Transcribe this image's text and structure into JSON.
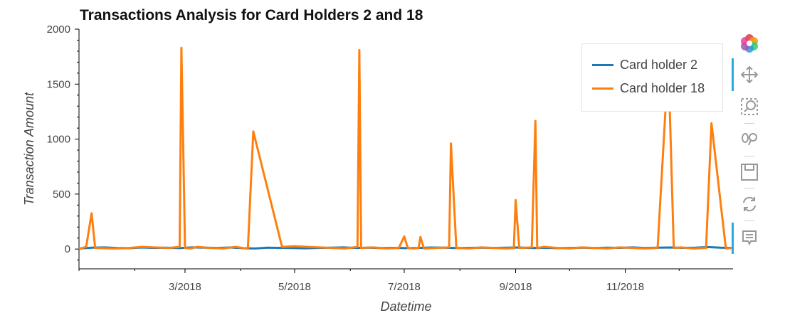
{
  "chart_data": {
    "type": "line",
    "title": "Transactions Analysis for Card Holders 2 and 18",
    "xlabel": "Datetime",
    "ylabel": "Transaction Amount",
    "x_tick_labels": [
      "3/2018",
      "5/2018",
      "7/2018",
      "9/2018",
      "11/2018"
    ],
    "y_tick_labels": [
      "0",
      "500",
      "1000",
      "1500",
      "2000"
    ],
    "xlim": [
      "2018-01-01",
      "2018-12-31"
    ],
    "ylim": [
      -180,
      2000
    ],
    "legend_position": "top-right",
    "grid": false,
    "series": [
      {
        "name": "Card holder 2",
        "color": "#1f77b4",
        "x": [
          "2018-01-01",
          "2018-01-08",
          "2018-01-15",
          "2018-01-22",
          "2018-01-29",
          "2018-02-05",
          "2018-02-12",
          "2018-02-19",
          "2018-02-26",
          "2018-03-05",
          "2018-03-12",
          "2018-03-19",
          "2018-03-26",
          "2018-04-02",
          "2018-04-09",
          "2018-04-16",
          "2018-04-23",
          "2018-04-30",
          "2018-05-07",
          "2018-05-14",
          "2018-05-21",
          "2018-05-28",
          "2018-06-04",
          "2018-06-11",
          "2018-06-18",
          "2018-06-25",
          "2018-07-02",
          "2018-07-09",
          "2018-07-16",
          "2018-07-23",
          "2018-07-30",
          "2018-08-06",
          "2018-08-13",
          "2018-08-20",
          "2018-08-27",
          "2018-09-03",
          "2018-09-10",
          "2018-09-17",
          "2018-09-24",
          "2018-10-01",
          "2018-10-08",
          "2018-10-15",
          "2018-10-22",
          "2018-10-29",
          "2018-11-05",
          "2018-11-12",
          "2018-11-19",
          "2018-11-26",
          "2018-12-03",
          "2018-12-10",
          "2018-12-17",
          "2018-12-24",
          "2018-12-31"
        ],
        "y": [
          5,
          12,
          15,
          10,
          8,
          14,
          10,
          12,
          8,
          15,
          12,
          10,
          14,
          8,
          5,
          12,
          11,
          9,
          7,
          10,
          13,
          15,
          10,
          12,
          9,
          11,
          8,
          10,
          14,
          12,
          9,
          11,
          13,
          10,
          12,
          14,
          9,
          11,
          8,
          10,
          12,
          9,
          13,
          11,
          15,
          10,
          12,
          14,
          11,
          13,
          18,
          12,
          10
        ]
      },
      {
        "name": "Card holder 18",
        "color": "#ff7f0e",
        "x": [
          "2018-01-01",
          "2018-01-05",
          "2018-01-08",
          "2018-01-10",
          "2018-01-20",
          "2018-01-28",
          "2018-02-05",
          "2018-02-12",
          "2018-02-20",
          "2018-02-26",
          "2018-02-27",
          "2018-03-01",
          "2018-03-04",
          "2018-03-08",
          "2018-03-15",
          "2018-03-22",
          "2018-03-29",
          "2018-04-05",
          "2018-04-08",
          "2018-04-24",
          "2018-05-01",
          "2018-05-08",
          "2018-05-15",
          "2018-05-22",
          "2018-05-29",
          "2018-06-05",
          "2018-06-06",
          "2018-06-07",
          "2018-06-14",
          "2018-06-21",
          "2018-06-28",
          "2018-07-01",
          "2018-07-03",
          "2018-07-06",
          "2018-07-09",
          "2018-07-10",
          "2018-07-12",
          "2018-07-19",
          "2018-07-26",
          "2018-07-27",
          "2018-07-30",
          "2018-08-06",
          "2018-08-13",
          "2018-08-20",
          "2018-08-27",
          "2018-08-31",
          "2018-09-01",
          "2018-09-03",
          "2018-09-10",
          "2018-09-12",
          "2018-09-13",
          "2018-09-17",
          "2018-09-24",
          "2018-10-01",
          "2018-10-08",
          "2018-10-15",
          "2018-10-22",
          "2018-10-29",
          "2018-11-05",
          "2018-11-12",
          "2018-11-19",
          "2018-11-25",
          "2018-11-28",
          "2018-12-02",
          "2018-12-09",
          "2018-12-16",
          "2018-12-19",
          "2018-12-27",
          "2018-12-31"
        ],
        "y": [
          0,
          20,
          325,
          10,
          5,
          8,
          20,
          15,
          10,
          20,
          1830,
          10,
          5,
          20,
          10,
          5,
          20,
          3,
          1070,
          20,
          25,
          20,
          15,
          10,
          5,
          20,
          1810,
          10,
          15,
          5,
          10,
          115,
          10,
          5,
          10,
          110,
          5,
          10,
          15,
          960,
          10,
          5,
          15,
          10,
          5,
          8,
          445,
          10,
          15,
          1165,
          10,
          20,
          10,
          5,
          15,
          10,
          5,
          15,
          10,
          5,
          10,
          1720,
          10,
          15,
          5,
          10,
          1145,
          5,
          10
        ]
      }
    ]
  },
  "legend": {
    "items": [
      {
        "label": "Card holder 2",
        "color": "#1f77b4"
      },
      {
        "label": "Card holder 18",
        "color": "#ff7f0e"
      }
    ]
  },
  "toolbar": {
    "tools": [
      {
        "name": "bokeh-logo-icon",
        "active": false
      },
      {
        "name": "pan-tool-icon",
        "active": true
      },
      {
        "name": "box-zoom-tool-icon",
        "active": false
      },
      {
        "name": "wheel-zoom-tool-icon",
        "active": false
      },
      {
        "name": "save-tool-icon",
        "active": false
      },
      {
        "name": "reset-tool-icon",
        "active": false
      },
      {
        "name": "hover-tool-icon",
        "active": true
      }
    ]
  }
}
